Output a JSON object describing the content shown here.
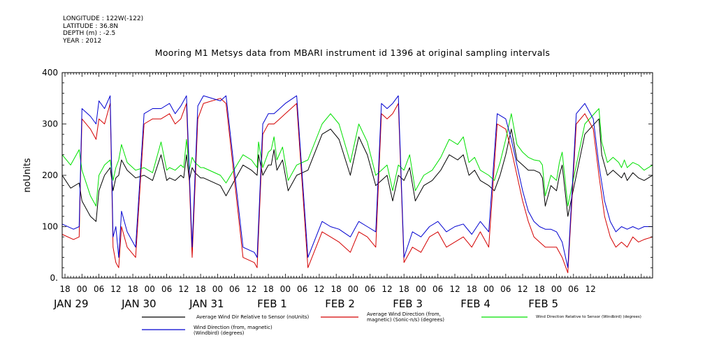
{
  "meta": {
    "longitude": "LONGITUDE : 122W(-122)",
    "latitude": "LATITUDE : 36.8N",
    "depth": "DEPTH (m) : -2.5",
    "year": "YEAR : 2012"
  },
  "chart_data": {
    "type": "line",
    "title": "Mooring M1 Metsys data from MBARI instrument id 1396 at original sampling intervals",
    "ylabel": "noUnits",
    "xlabel": "",
    "ylim": [
      0,
      400
    ],
    "yticks": [
      0,
      100,
      200,
      300,
      400
    ],
    "ytick_labels": [
      "0.",
      "100",
      "200",
      "300",
      "400"
    ],
    "xlim_hours": [
      -7,
      202
    ],
    "x_hour_ticks": [
      "18",
      "00",
      "06",
      "12",
      "18",
      "00",
      "06",
      "12",
      "18",
      "00",
      "06",
      "12",
      "18",
      "00",
      "06",
      "12",
      "18",
      "00",
      "06",
      "12",
      "18",
      "00",
      "06",
      "12",
      "18",
      "00",
      "06",
      "12",
      "18",
      "00",
      "06",
      "12"
    ],
    "x_date_labels": [
      "JAN 29",
      "JAN 30",
      "JAN 31",
      "FEB  1",
      "FEB  2",
      "FEB  3",
      "FEB  4",
      "FEB  5"
    ],
    "grid": false,
    "series": [
      {
        "name": "Average Wind Dir Relative to Sensor (noUnits)",
        "color": "#000000",
        "x": [
          -7,
          -4,
          -1,
          0,
          3,
          5,
          6,
          8,
          10,
          11,
          12,
          13,
          14,
          16,
          19,
          22,
          25,
          28,
          30,
          31,
          33,
          35,
          36,
          37,
          38,
          39,
          40,
          42,
          43,
          49,
          51,
          57,
          60,
          62,
          62.5,
          64,
          66,
          67,
          68,
          69,
          71,
          73,
          76,
          80,
          85,
          88,
          91,
          95,
          98,
          101,
          104,
          106,
          108,
          110,
          112,
          114,
          116,
          118,
          121,
          124,
          127,
          130,
          133,
          135,
          137,
          139,
          141,
          144,
          146,
          148,
          150,
          152,
          154,
          156,
          158,
          160,
          162,
          163,
          164,
          166,
          168,
          169,
          170,
          172,
          178,
          183,
          184,
          186,
          188,
          190,
          191,
          192,
          193,
          195,
          197,
          199,
          202
        ],
        "y": [
          200,
          175,
          185,
          150,
          120,
          110,
          170,
          200,
          215,
          170,
          195,
          200,
          230,
          210,
          195,
          200,
          190,
          240,
          190,
          195,
          190,
          200,
          195,
          240,
          190,
          215,
          205,
          195,
          195,
          180,
          160,
          220,
          210,
          200,
          240,
          200,
          220,
          220,
          250,
          210,
          230,
          170,
          200,
          210,
          280,
          290,
          270,
          200,
          275,
          240,
          180,
          190,
          200,
          150,
          200,
          190,
          215,
          150,
          180,
          190,
          210,
          240,
          230,
          240,
          200,
          210,
          190,
          180,
          170,
          200,
          240,
          290,
          230,
          220,
          210,
          210,
          205,
          195,
          140,
          180,
          170,
          200,
          220,
          120,
          280,
          310,
          240,
          200,
          210,
          200,
          195,
          205,
          190,
          205,
          195,
          190,
          200
        ]
      },
      {
        "name": "Average Wind Direction (from, magnetic) (Sonic-n/s) (degrees)",
        "color": "#d40000",
        "x": [
          -7,
          -3,
          -1,
          0,
          3,
          5,
          6,
          8,
          10,
          11,
          12,
          13,
          14,
          16,
          19,
          22,
          25,
          28,
          31,
          33,
          35,
          37,
          39,
          41,
          43,
          49,
          51,
          57,
          61,
          62,
          64,
          66,
          68,
          70,
          72,
          76,
          80,
          85,
          88,
          91,
          95,
          98,
          101,
          104,
          106,
          108,
          110,
          112,
          114,
          117,
          120,
          123,
          126,
          129,
          132,
          135,
          138,
          141,
          144,
          147,
          150,
          152,
          154,
          156,
          158,
          160,
          162,
          164,
          166,
          168,
          170,
          172,
          175,
          178,
          181,
          183,
          185,
          187,
          189,
          191,
          193,
          195,
          197,
          199,
          202
        ],
        "y": [
          85,
          75,
          80,
          310,
          290,
          270,
          310,
          300,
          340,
          60,
          30,
          20,
          100,
          60,
          40,
          300,
          310,
          310,
          320,
          300,
          310,
          340,
          40,
          310,
          340,
          350,
          340,
          40,
          30,
          20,
          280,
          300,
          300,
          310,
          320,
          340,
          20,
          90,
          80,
          70,
          50,
          90,
          80,
          60,
          320,
          310,
          320,
          340,
          30,
          60,
          50,
          80,
          90,
          60,
          70,
          80,
          60,
          90,
          60,
          300,
          290,
          250,
          200,
          150,
          110,
          80,
          70,
          60,
          60,
          60,
          40,
          10,
          300,
          320,
          290,
          200,
          120,
          80,
          60,
          70,
          60,
          80,
          70,
          75,
          80
        ]
      },
      {
        "name": "Wind Direction Relative to Sensor (Windbird) (degrees)",
        "color": "#00e000",
        "x": [
          -7,
          -4,
          -1,
          0,
          3,
          5,
          6,
          8,
          10,
          11,
          12,
          13,
          14,
          16,
          19,
          22,
          25,
          28,
          30,
          31,
          33,
          35,
          36,
          37,
          38,
          39,
          40,
          42,
          43,
          49,
          51,
          57,
          60,
          62,
          62.5,
          64,
          66,
          67,
          68,
          69,
          71,
          73,
          76,
          80,
          85,
          88,
          91,
          95,
          98,
          101,
          104,
          106,
          108,
          110,
          112,
          114,
          116,
          118,
          121,
          124,
          127,
          130,
          133,
          135,
          137,
          139,
          141,
          144,
          146,
          148,
          150,
          152,
          154,
          156,
          158,
          160,
          162,
          163,
          164,
          166,
          168,
          169,
          170,
          172,
          178,
          183,
          184,
          186,
          188,
          190,
          191,
          192,
          193,
          195,
          197,
          199,
          202
        ],
        "y": [
          240,
          220,
          250,
          210,
          160,
          140,
          200,
          220,
          230,
          190,
          215,
          230,
          260,
          225,
          210,
          215,
          205,
          265,
          210,
          215,
          210,
          220,
          215,
          270,
          210,
          235,
          225,
          215,
          215,
          200,
          185,
          240,
          230,
          215,
          265,
          215,
          245,
          250,
          275,
          230,
          255,
          190,
          220,
          230,
          300,
          320,
          300,
          225,
          300,
          265,
          200,
          210,
          220,
          170,
          220,
          210,
          240,
          170,
          200,
          210,
          235,
          270,
          260,
          275,
          225,
          235,
          210,
          200,
          190,
          225,
          270,
          320,
          260,
          245,
          235,
          230,
          228,
          220,
          160,
          200,
          190,
          225,
          245,
          140,
          300,
          330,
          265,
          225,
          235,
          225,
          215,
          230,
          215,
          225,
          220,
          210,
          220
        ]
      },
      {
        "name": "Wind Direction (from, magnetic) (Windbird) (degrees)",
        "color": "#0000d0",
        "x": [
          -7,
          -3,
          -1,
          0,
          3,
          5,
          6,
          8,
          10,
          11,
          12,
          13,
          14,
          16,
          19,
          22,
          25,
          28,
          31,
          33,
          35,
          37,
          39,
          41,
          43,
          49,
          51,
          57,
          61,
          62,
          64,
          66,
          68,
          70,
          72,
          76,
          80,
          85,
          88,
          91,
          95,
          98,
          101,
          104,
          106,
          108,
          110,
          112,
          114,
          117,
          120,
          123,
          126,
          129,
          132,
          135,
          138,
          141,
          144,
          147,
          150,
          152,
          154,
          156,
          158,
          160,
          162,
          164,
          166,
          168,
          170,
          172,
          175,
          178,
          181,
          183,
          185,
          187,
          189,
          191,
          193,
          195,
          197,
          199,
          202
        ],
        "y": [
          105,
          95,
          100,
          330,
          315,
          300,
          345,
          330,
          355,
          80,
          100,
          40,
          130,
          90,
          60,
          320,
          330,
          330,
          340,
          320,
          335,
          355,
          60,
          335,
          355,
          345,
          355,
          60,
          50,
          40,
          300,
          320,
          320,
          330,
          340,
          355,
          40,
          110,
          100,
          95,
          80,
          110,
          100,
          90,
          340,
          330,
          340,
          355,
          40,
          90,
          80,
          100,
          110,
          90,
          100,
          105,
          85,
          110,
          90,
          320,
          310,
          270,
          220,
          170,
          130,
          110,
          100,
          95,
          95,
          90,
          70,
          20,
          320,
          340,
          310,
          220,
          150,
          110,
          90,
          100,
          95,
          100,
          95,
          100,
          100
        ]
      }
    ]
  }
}
